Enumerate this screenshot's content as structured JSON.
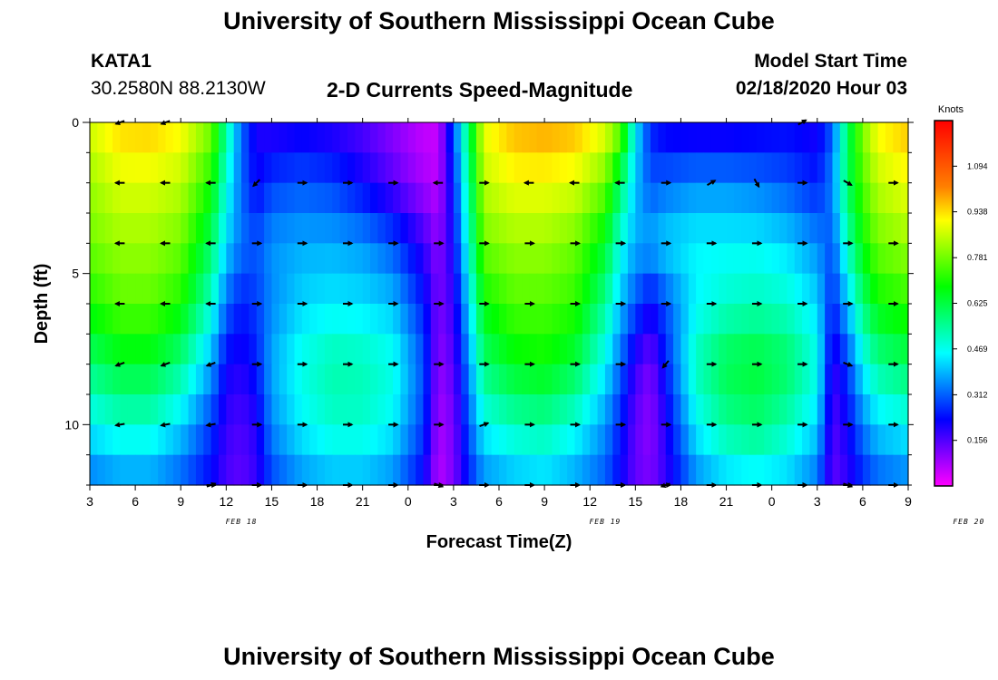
{
  "header": {
    "title_top": "University of Southern Mississippi Ocean Cube",
    "station": "KATA1",
    "coords": "30.2580N 88.2130W",
    "plot_title": "2-D Currents Speed-Magnitude",
    "model_label": "Model Start Time",
    "model_time": "02/18/2020 Hour 03",
    "title_bottom": "University of Southern Mississippi Ocean Cube"
  },
  "chart_data": {
    "type": "heatmap",
    "title": "2-D Currents Speed-Magnitude",
    "xlabel": "Forecast Time(Z)",
    "ylabel": "Depth (ft)",
    "x_hours_range": [
      3,
      57
    ],
    "x_tick_labels": [
      "3",
      "6",
      "9",
      "12",
      "15",
      "18",
      "21",
      "0",
      "3",
      "6",
      "9",
      "12",
      "15",
      "18",
      "21",
      "0",
      "3",
      "6",
      "9"
    ],
    "date_labels": [
      "FEB 18",
      "FEB 19",
      "FEB 20"
    ],
    "date_label_hours": [
      13,
      37,
      61
    ],
    "y_range_ft": [
      0,
      12
    ],
    "y_tick_labels": [
      "0",
      "5",
      "10"
    ],
    "y_tick_values": [
      0,
      5,
      10
    ],
    "depth_levels_ft": [
      0,
      2,
      4,
      6,
      8,
      10,
      12
    ],
    "colorbar": {
      "units": "Knots",
      "min": 0.0,
      "max": 1.25,
      "tick_values": [
        1.094,
        0.938,
        0.781,
        0.625,
        0.469,
        0.312,
        0.156
      ],
      "tick_labels": [
        "1.094",
        "0.938",
        "0.781",
        "0.625",
        "0.469",
        "0.312",
        "0.156"
      ],
      "colors": [
        "#ff00ff",
        "#8000ff",
        "#0000ff",
        "#0080ff",
        "#00ffff",
        "#00ff80",
        "#00ff00",
        "#80ff00",
        "#ffff00",
        "#ff8000",
        "#ff4000",
        "#ff0000"
      ]
    },
    "speed_knots": {
      "hours": [
        3,
        5,
        7,
        9,
        11,
        12,
        13,
        14,
        15,
        17,
        19,
        21,
        23,
        25,
        26,
        27,
        28,
        29,
        31,
        33,
        35,
        37,
        38,
        39,
        40,
        41,
        43,
        45,
        47,
        49,
        51,
        52,
        53,
        54,
        55,
        57
      ],
      "rows": [
        [
          0.88,
          0.95,
          0.96,
          0.92,
          0.8,
          0.55,
          0.32,
          0.2,
          0.18,
          0.2,
          0.18,
          0.15,
          0.1,
          0.05,
          0.05,
          0.3,
          0.6,
          0.9,
          0.98,
          1.0,
          0.98,
          0.9,
          0.8,
          0.45,
          0.25,
          0.2,
          0.18,
          0.18,
          0.2,
          0.22,
          0.2,
          0.3,
          0.6,
          0.8,
          0.92,
          0.97
        ],
        [
          0.82,
          0.88,
          0.88,
          0.85,
          0.7,
          0.48,
          0.32,
          0.22,
          0.28,
          0.3,
          0.28,
          0.22,
          0.15,
          0.08,
          0.06,
          0.25,
          0.55,
          0.85,
          0.9,
          0.9,
          0.88,
          0.78,
          0.6,
          0.4,
          0.3,
          0.32,
          0.35,
          0.35,
          0.33,
          0.3,
          0.25,
          0.35,
          0.6,
          0.75,
          0.85,
          0.9
        ],
        [
          0.78,
          0.82,
          0.82,
          0.78,
          0.6,
          0.42,
          0.33,
          0.3,
          0.36,
          0.38,
          0.38,
          0.36,
          0.3,
          0.18,
          0.1,
          0.22,
          0.5,
          0.78,
          0.82,
          0.82,
          0.78,
          0.65,
          0.48,
          0.38,
          0.38,
          0.42,
          0.45,
          0.45,
          0.45,
          0.42,
          0.35,
          0.3,
          0.52,
          0.68,
          0.78,
          0.82
        ],
        [
          0.7,
          0.76,
          0.76,
          0.7,
          0.5,
          0.32,
          0.25,
          0.28,
          0.35,
          0.42,
          0.44,
          0.43,
          0.4,
          0.25,
          0.12,
          0.18,
          0.42,
          0.68,
          0.75,
          0.75,
          0.72,
          0.55,
          0.4,
          0.3,
          0.22,
          0.3,
          0.45,
          0.5,
          0.52,
          0.5,
          0.42,
          0.25,
          0.4,
          0.58,
          0.68,
          0.72
        ],
        [
          0.58,
          0.64,
          0.64,
          0.56,
          0.38,
          0.22,
          0.2,
          0.25,
          0.38,
          0.48,
          0.53,
          0.52,
          0.48,
          0.3,
          0.1,
          0.15,
          0.35,
          0.58,
          0.66,
          0.68,
          0.62,
          0.45,
          0.32,
          0.18,
          0.12,
          0.25,
          0.52,
          0.62,
          0.64,
          0.6,
          0.48,
          0.18,
          0.28,
          0.45,
          0.55,
          0.6
        ],
        [
          0.45,
          0.5,
          0.5,
          0.42,
          0.28,
          0.18,
          0.16,
          0.2,
          0.35,
          0.45,
          0.5,
          0.5,
          0.45,
          0.28,
          0.08,
          0.12,
          0.3,
          0.46,
          0.52,
          0.54,
          0.48,
          0.36,
          0.25,
          0.14,
          0.1,
          0.2,
          0.45,
          0.55,
          0.58,
          0.52,
          0.42,
          0.15,
          0.22,
          0.34,
          0.42,
          0.46
        ],
        [
          0.32,
          0.35,
          0.35,
          0.3,
          0.22,
          0.16,
          0.14,
          0.18,
          0.28,
          0.35,
          0.38,
          0.38,
          0.34,
          0.22,
          0.06,
          0.12,
          0.24,
          0.34,
          0.38,
          0.4,
          0.36,
          0.3,
          0.22,
          0.14,
          0.12,
          0.18,
          0.34,
          0.4,
          0.42,
          0.4,
          0.32,
          0.14,
          0.18,
          0.25,
          0.3,
          0.33
        ]
      ]
    },
    "direction_arrows_deg": {
      "hours": [
        5,
        8,
        11,
        14,
        17,
        20,
        23,
        26,
        29,
        32,
        35,
        38,
        41,
        44,
        47,
        50,
        53,
        56
      ],
      "rows": [
        [
          200,
          200,
          null,
          null,
          null,
          null,
          null,
          null,
          null,
          null,
          null,
          null,
          null,
          null,
          null,
          30,
          null,
          null
        ],
        [
          180,
          180,
          180,
          225,
          0,
          0,
          0,
          180,
          0,
          180,
          180,
          180,
          0,
          30,
          300,
          0,
          330,
          0
        ],
        [
          180,
          180,
          180,
          0,
          0,
          0,
          0,
          0,
          0,
          0,
          0,
          0,
          0,
          0,
          0,
          0,
          0,
          0
        ],
        [
          180,
          180,
          180,
          0,
          0,
          0,
          0,
          0,
          0,
          0,
          0,
          0,
          0,
          0,
          0,
          0,
          0,
          0
        ],
        [
          200,
          200,
          200,
          0,
          0,
          0,
          0,
          0,
          0,
          0,
          0,
          0,
          230,
          0,
          0,
          0,
          340,
          0
        ],
        [
          190,
          190,
          190,
          0,
          0,
          0,
          0,
          0,
          20,
          0,
          0,
          0,
          0,
          0,
          0,
          0,
          0,
          0
        ],
        [
          null,
          null,
          20,
          0,
          0,
          0,
          0,
          0,
          0,
          0,
          0,
          0,
          0,
          0,
          0,
          0,
          0,
          0
        ],
        [
          null,
          null,
          0,
          0,
          0,
          0,
          0,
          340,
          0,
          0,
          0,
          0,
          200,
          0,
          0,
          0,
          340,
          0
        ]
      ]
    },
    "arrow_depths_ft": [
      0,
      2,
      4,
      6,
      8,
      10,
      12,
      12
    ]
  }
}
